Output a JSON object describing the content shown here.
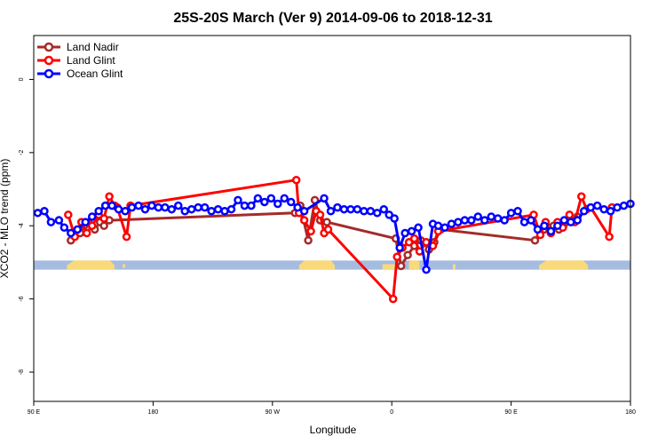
{
  "chart_data": {
    "type": "line",
    "title": "25S-20S March (Ver 9)   2014-09-06 to 2018-12-31",
    "xlabel": "Longitude",
    "ylabel": "XCO2 - MLO trend (ppm)",
    "xlim": [
      90,
      540
    ],
    "ylim": [
      -8.8,
      1.2
    ],
    "x_ticks": [
      {
        "value": 90,
        "label": "90 E"
      },
      {
        "value": 180,
        "label": "180"
      },
      {
        "value": 270,
        "label": "90 W"
      },
      {
        "value": 360,
        "label": "0"
      },
      {
        "value": 450,
        "label": "90 E"
      },
      {
        "value": 540,
        "label": "180"
      }
    ],
    "y_ticks": [
      {
        "value": 0,
        "label": "0"
      },
      {
        "value": -2,
        "label": "-2"
      },
      {
        "value": -4,
        "label": "-4"
      },
      {
        "value": -6,
        "label": "-6"
      },
      {
        "value": -8,
        "label": "-8"
      }
    ],
    "grid": false,
    "legend_position": "top-left",
    "background_band": {
      "y_range": [
        -5.2,
        -4.95
      ],
      "ocean_color": "#a5bce0",
      "land_color": "#fad97a",
      "land_segments": [
        {
          "x": [
            115,
            151
          ],
          "y_top": [
            -5.08,
            -4.95
          ],
          "y_bottom": [
            -5.2,
            -5.2
          ]
        },
        {
          "x": [
            157,
            159
          ],
          "y_top": [
            -5.05,
            -5.05
          ],
          "y_bottom": [
            -5.15,
            -5.15
          ]
        },
        {
          "x": [
            290,
            317
          ],
          "y_top": [
            -5.08,
            -4.95
          ],
          "y_bottom": [
            -5.2,
            -5.2
          ]
        },
        {
          "x": [
            353,
            365
          ],
          "y_top": [
            -5.05,
            -5.05
          ],
          "y_bottom": [
            -5.2,
            -5.2
          ]
        },
        {
          "x": [
            373,
            381
          ],
          "y_top": [
            -5.0,
            -4.95
          ],
          "y_bottom": [
            -5.2,
            -5.2
          ]
        },
        {
          "x": [
            406,
            408
          ],
          "y_top": [
            -5.05,
            -5.05
          ],
          "y_bottom": [
            -5.2,
            -5.2
          ]
        },
        {
          "x": [
            471,
            508
          ],
          "y_top": [
            -5.08,
            -4.95
          ],
          "y_bottom": [
            -5.2,
            -5.2
          ]
        }
      ]
    },
    "series": [
      {
        "name": "Land Nadir",
        "color": "#a52a2a",
        "x": [
          118,
          122,
          125,
          128,
          132,
          136,
          140,
          143,
          147,
          287,
          291,
          297,
          302,
          306,
          311,
          363,
          367,
          372,
          377,
          382,
          388,
          392,
          397,
          468,
          472,
          475,
          478,
          482,
          486,
          490,
          495,
          500
        ],
        "y": [
          -4.4,
          -4.15,
          -4.2,
          -4.0,
          -3.95,
          -4.1,
          -3.9,
          -4.0,
          -3.85,
          -3.65,
          -3.45,
          -4.4,
          -3.3,
          -3.85,
          -3.9,
          -4.35,
          -5.1,
          -4.8,
          -4.55,
          -4.4,
          -4.65,
          -4.45,
          -4.1,
          -4.4,
          -4.15,
          -4.1,
          -4.05,
          -4.0,
          -4.1,
          -3.95,
          -3.85,
          -3.75
        ]
      },
      {
        "name": "Land Glint",
        "color": "#ff0000",
        "x": [
          116,
          121,
          126,
          130,
          134,
          139,
          143,
          147,
          151,
          153,
          160,
          163,
          288,
          290,
          294,
          299,
          303,
          306,
          309,
          312,
          361,
          364,
          368,
          373,
          377,
          381,
          386,
          391,
          395,
          467,
          472,
          476,
          480,
          485,
          489,
          494,
          498,
          503,
          507,
          510,
          524,
          526
        ],
        "y": [
          -3.7,
          -4.3,
          -3.9,
          -4.2,
          -4.0,
          -3.7,
          -3.8,
          -3.2,
          -3.45,
          -3.5,
          -4.3,
          -3.45,
          -2.75,
          -3.65,
          -3.85,
          -4.15,
          -3.6,
          -3.7,
          -4.2,
          -4.1,
          -6.0,
          -4.85,
          -4.6,
          -4.45,
          -4.35,
          -4.7,
          -4.45,
          -4.55,
          -4.15,
          -3.7,
          -4.25,
          -3.9,
          -4.2,
          -3.9,
          -4.05,
          -3.7,
          -3.9,
          -3.2,
          -3.55,
          -3.5,
          -4.3,
          -3.5
        ]
      },
      {
        "name": "Ocean Glint",
        "color": "#0000ff",
        "x": [
          93,
          98,
          103,
          109,
          113,
          118,
          123,
          129,
          134,
          139,
          144,
          149,
          154,
          159,
          164,
          169,
          174,
          179,
          184,
          189,
          194,
          199,
          204,
          209,
          214,
          219,
          224,
          229,
          234,
          239,
          244,
          249,
          254,
          259,
          264,
          269,
          274,
          279,
          284,
          289,
          294,
          309,
          314,
          319,
          324,
          329,
          334,
          339,
          344,
          349,
          354,
          358,
          362,
          366,
          370,
          375,
          380,
          386,
          391,
          395,
          400,
          405,
          410,
          415,
          420,
          425,
          430,
          435,
          440,
          445,
          450,
          455,
          460,
          465,
          470,
          475,
          480,
          485,
          490,
          495,
          500,
          505,
          510,
          515,
          520,
          525,
          530,
          535,
          540
        ],
        "y": [
          -3.65,
          -3.6,
          -3.9,
          -3.85,
          -4.05,
          -4.2,
          -4.1,
          -3.9,
          -3.75,
          -3.6,
          -3.45,
          -3.45,
          -3.55,
          -3.6,
          -3.5,
          -3.45,
          -3.55,
          -3.45,
          -3.5,
          -3.5,
          -3.55,
          -3.45,
          -3.6,
          -3.55,
          -3.5,
          -3.5,
          -3.6,
          -3.55,
          -3.6,
          -3.55,
          -3.3,
          -3.45,
          -3.45,
          -3.25,
          -3.35,
          -3.25,
          -3.4,
          -3.25,
          -3.35,
          -3.5,
          -3.6,
          -3.25,
          -3.6,
          -3.5,
          -3.55,
          -3.55,
          -3.55,
          -3.6,
          -3.6,
          -3.65,
          -3.55,
          -3.7,
          -3.8,
          -4.6,
          -4.2,
          -4.15,
          -4.05,
          -5.2,
          -3.95,
          -4.0,
          -4.05,
          -3.95,
          -3.9,
          -3.85,
          -3.85,
          -3.75,
          -3.85,
          -3.75,
          -3.8,
          -3.85,
          -3.65,
          -3.6,
          -3.9,
          -3.85,
          -4.1,
          -4.0,
          -4.15,
          -4.0,
          -3.85,
          -3.9,
          -3.85,
          -3.6,
          -3.5,
          -3.45,
          -3.55,
          -3.6,
          -3.5,
          -3.45,
          -3.4
        ]
      }
    ]
  }
}
